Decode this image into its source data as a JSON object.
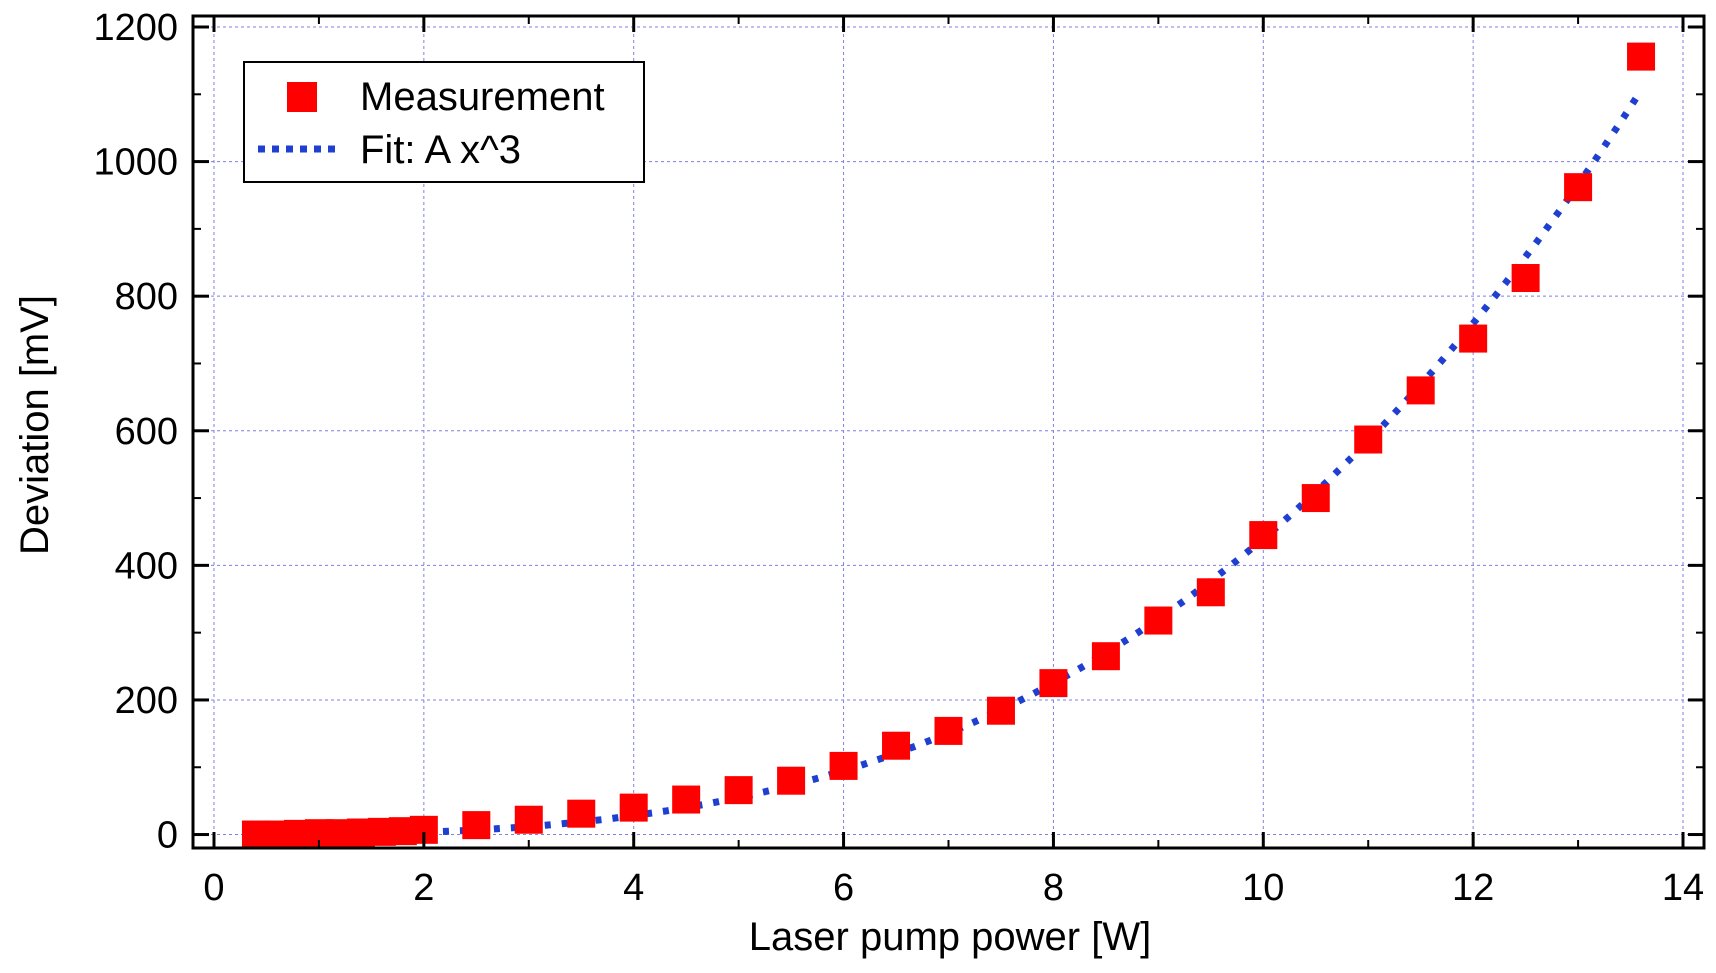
{
  "chart_data": {
    "type": "scatter",
    "title": "",
    "xlabel": "Laser pump power [W]",
    "ylabel": "Deviation [mV]",
    "xlim": [
      -0.2,
      14.2
    ],
    "ylim": [
      -20,
      1200
    ],
    "xticks": [
      0,
      2,
      4,
      6,
      8,
      10,
      12,
      14
    ],
    "yticks": [
      0,
      200,
      400,
      600,
      800,
      1000,
      1200
    ],
    "xticks_minor": [
      1,
      3,
      5,
      7,
      9,
      11,
      13
    ],
    "yticks_minor": [
      100,
      300,
      500,
      700,
      900,
      1100
    ],
    "grid": true,
    "legend_position": "top-left",
    "series": [
      {
        "name": "Measurement",
        "kind": "markers",
        "marker": "square",
        "color": "#ff0000",
        "x": [
          0.4,
          0.6,
          0.8,
          1.0,
          1.2,
          1.4,
          1.6,
          1.8,
          2.0,
          2.5,
          3.0,
          3.5,
          4.0,
          4.5,
          5.0,
          5.5,
          6.0,
          6.5,
          7.0,
          7.5,
          8.0,
          8.5,
          9.0,
          9.5,
          10.0,
          10.5,
          11.0,
          11.5,
          12.0,
          12.5,
          13.0,
          13.6
        ],
        "y": [
          0,
          0,
          1,
          2,
          2,
          3,
          4,
          5,
          7,
          14,
          22,
          31,
          40,
          52,
          66,
          80,
          102,
          132,
          154,
          184,
          225,
          265,
          318,
          360,
          445,
          500,
          587,
          660,
          737,
          827,
          962,
          1156
        ]
      },
      {
        "name": "Fit: A x^3",
        "kind": "dotted-line",
        "color": "#1f3fd1",
        "coefficient_A": 0.4396,
        "x_range": [
          0.4,
          13.6
        ]
      }
    ]
  }
}
